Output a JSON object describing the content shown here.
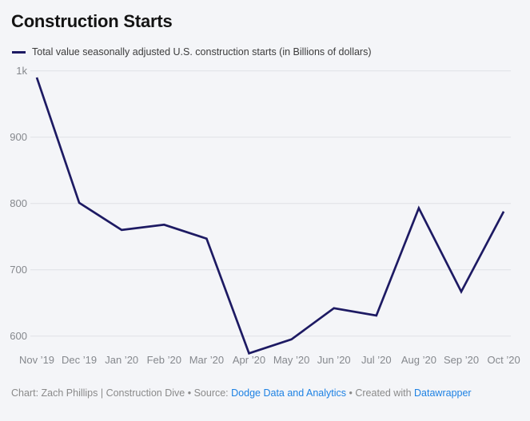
{
  "colors": {
    "background": "#f4f5f8",
    "line": "#1d1a63",
    "grid": "#dfe1e6",
    "title_text": "#141414",
    "legend_text": "#3c3c3c",
    "axis_text": "#85888d",
    "footer_text": "#8a8a8a",
    "link": "#1d81e3"
  },
  "header": {
    "title": "Construction Starts"
  },
  "legend": {
    "series_label": "Total value seasonally adjusted U.S. construction starts (in Billions of dollars)"
  },
  "chart_data": {
    "type": "line",
    "title": "Construction Starts",
    "x": [
      "Nov ’19",
      "Dec ’19",
      "Jan ’20",
      "Feb ’20",
      "Mar ’20",
      "Apr ’20",
      "May ’20",
      "Jun ’20",
      "Jul ’20",
      "Aug ’20",
      "Sep ’20",
      "Oct ’20"
    ],
    "series": [
      {
        "name": "Total value seasonally adjusted U.S. construction starts (in Billions of dollars)",
        "values": [
          990,
          801,
          760,
          768,
          747,
          574,
          595,
          642,
          631,
          793,
          667,
          788
        ]
      }
    ],
    "xlabel": "",
    "ylabel": "",
    "unit": "Billions of dollars",
    "ylim": [
      565,
      1015
    ],
    "yticks": [
      {
        "value": 1000,
        "label": "1k"
      },
      {
        "value": 900,
        "label": "900"
      },
      {
        "value": 800,
        "label": "800"
      },
      {
        "value": 700,
        "label": "700"
      },
      {
        "value": 600,
        "label": "600"
      }
    ],
    "grid": "horizontal",
    "legend_position": "top-left"
  },
  "footer": {
    "byline": "Chart: Zach Phillips | Construction Dive",
    "separator": "•",
    "source_label": "Source:",
    "source_link_label": "Dodge Data and Analytics",
    "created_label": "Created with",
    "created_link_label": "Datawrapper"
  }
}
